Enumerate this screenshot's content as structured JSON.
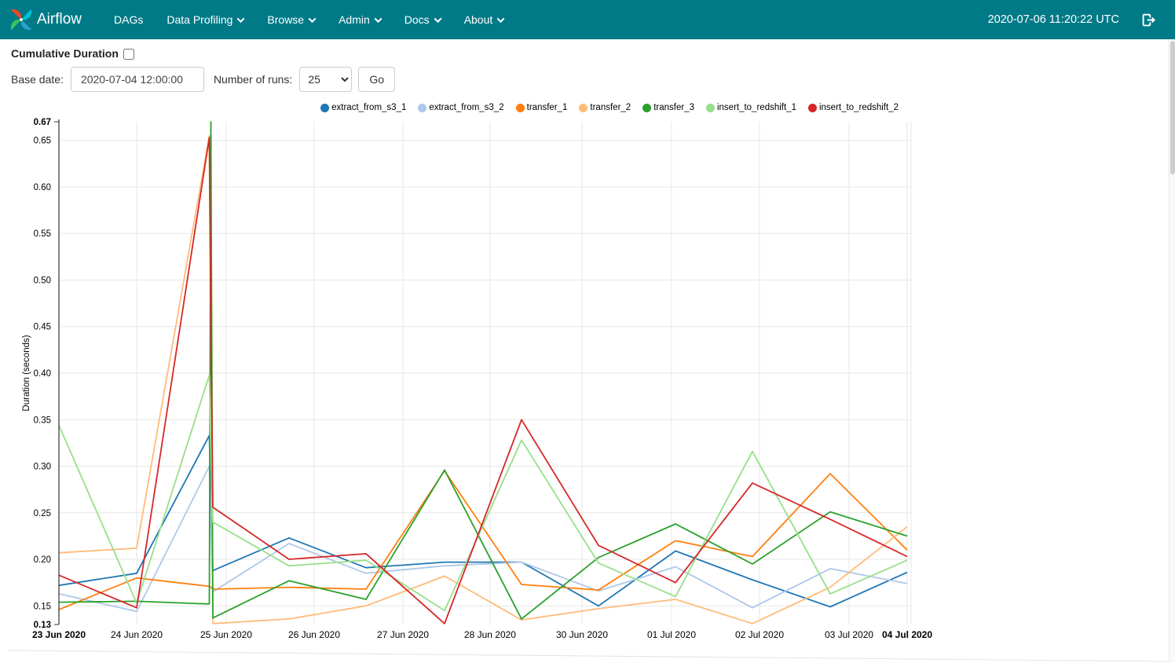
{
  "navbar": {
    "brand": "Airflow",
    "items": [
      {
        "label": "DAGs"
      },
      {
        "label": "Data Profiling"
      },
      {
        "label": "Browse"
      },
      {
        "label": "Admin"
      },
      {
        "label": "Docs"
      },
      {
        "label": "About"
      }
    ],
    "clock": "2020-07-06 11:20:22 UTC",
    "bg_color": "#007A87"
  },
  "controls": {
    "cumulative_label": "Cumulative Duration",
    "cumulative_checked": false,
    "base_date_label": "Base date:",
    "base_date_value": "2020-07-04 12:00:00",
    "num_runs_label": "Number of runs:",
    "num_runs_value": "25",
    "go_label": "Go"
  },
  "chart_data": {
    "type": "line",
    "ylabel": "Duration (seconds)",
    "ylim": [
      0.13,
      0.67
    ],
    "grid": true,
    "legend_position": "top-right",
    "grid_color": "#e7e7e7",
    "y_ticks": [
      {
        "label": "0.15",
        "v": 0.15
      },
      {
        "label": "0.20",
        "v": 0.2
      },
      {
        "label": "0.25",
        "v": 0.25
      },
      {
        "label": "0.30",
        "v": 0.3
      },
      {
        "label": "0.35",
        "v": 0.35
      },
      {
        "label": "0.40",
        "v": 0.4
      },
      {
        "label": "0.45",
        "v": 0.45
      },
      {
        "label": "0.50",
        "v": 0.5
      },
      {
        "label": "0.55",
        "v": 0.55
      },
      {
        "label": "0.60",
        "v": 0.6
      },
      {
        "label": "0.65",
        "v": 0.65
      }
    ],
    "y_minmax": [
      {
        "label": "0.67",
        "v": 0.67,
        "bold": true
      },
      {
        "label": "0.13",
        "v": 0.13,
        "bold": true
      }
    ],
    "x_ticks": [
      {
        "label": "23 Jun 2020",
        "f": 0.0,
        "bold": true
      },
      {
        "label": "24 Jun 2020",
        "f": 0.0917,
        "bold": false
      },
      {
        "label": "25 Jun 2020",
        "f": 0.1972,
        "bold": false
      },
      {
        "label": "26 Jun 2020",
        "f": 0.3009,
        "bold": false
      },
      {
        "label": "27 Jun 2020",
        "f": 0.4056,
        "bold": false
      },
      {
        "label": "28 Jun 2020",
        "f": 0.5083,
        "bold": false
      },
      {
        "label": "30 Jun 2020",
        "f": 0.6167,
        "bold": false
      },
      {
        "label": "01 Jul 2020",
        "f": 0.7222,
        "bold": false
      },
      {
        "label": "02 Jul 2020",
        "f": 0.8259,
        "bold": false
      },
      {
        "label": "03 Jul 2020",
        "f": 0.9315,
        "bold": false
      },
      {
        "label": "04 Jul 2020",
        "f": 1.0,
        "bold": true
      }
    ],
    "x_points_f": [
      0.0,
      0.0917,
      0.1773,
      0.1792,
      0.1815,
      0.2713,
      0.362,
      0.4546,
      0.5454,
      0.6361,
      0.7269,
      0.8176,
      0.9093,
      1.0
    ],
    "series": [
      {
        "name": "extract_from_s3_1",
        "color": "#1f77b4",
        "values": [
          0.172,
          0.185,
          0.333,
          0.262,
          0.188,
          0.223,
          0.191,
          0.197,
          0.197,
          0.15,
          0.209,
          0.178,
          0.149,
          0.186
        ]
      },
      {
        "name": "extract_from_s3_2",
        "color": "#aec7e8",
        "values": [
          0.163,
          0.144,
          0.3,
          0.235,
          0.165,
          0.217,
          0.185,
          0.193,
          0.197,
          0.166,
          0.192,
          0.148,
          0.19,
          0.174
        ]
      },
      {
        "name": "transfer_1",
        "color": "#ff7f0e",
        "values": [
          0.146,
          0.18,
          0.171,
          0.17,
          0.168,
          0.17,
          0.168,
          0.295,
          0.173,
          0.167,
          0.22,
          0.203,
          0.292,
          0.21
        ]
      },
      {
        "name": "transfer_2",
        "color": "#ffbb78",
        "values": [
          0.207,
          0.212,
          0.655,
          0.4,
          0.131,
          0.136,
          0.15,
          0.182,
          0.135,
          0.147,
          0.157,
          0.131,
          0.17,
          0.235
        ]
      },
      {
        "name": "transfer_3",
        "color": "#2ca02c",
        "values": [
          0.154,
          0.155,
          0.152,
          0.67,
          0.137,
          0.177,
          0.157,
          0.296,
          0.136,
          0.202,
          0.238,
          0.195,
          0.251,
          0.225
        ]
      },
      {
        "name": "insert_to_redshift_1",
        "color": "#98df8a",
        "values": [
          0.344,
          0.153,
          0.398,
          0.32,
          0.24,
          0.193,
          0.199,
          0.145,
          0.328,
          0.196,
          0.16,
          0.316,
          0.163,
          0.199
        ]
      },
      {
        "name": "insert_to_redshift_2",
        "color": "#d62728",
        "values": [
          0.183,
          0.148,
          0.653,
          0.45,
          0.256,
          0.2,
          0.206,
          0.131,
          0.35,
          0.215,
          0.175,
          0.282,
          0.243,
          0.203
        ]
      }
    ]
  }
}
